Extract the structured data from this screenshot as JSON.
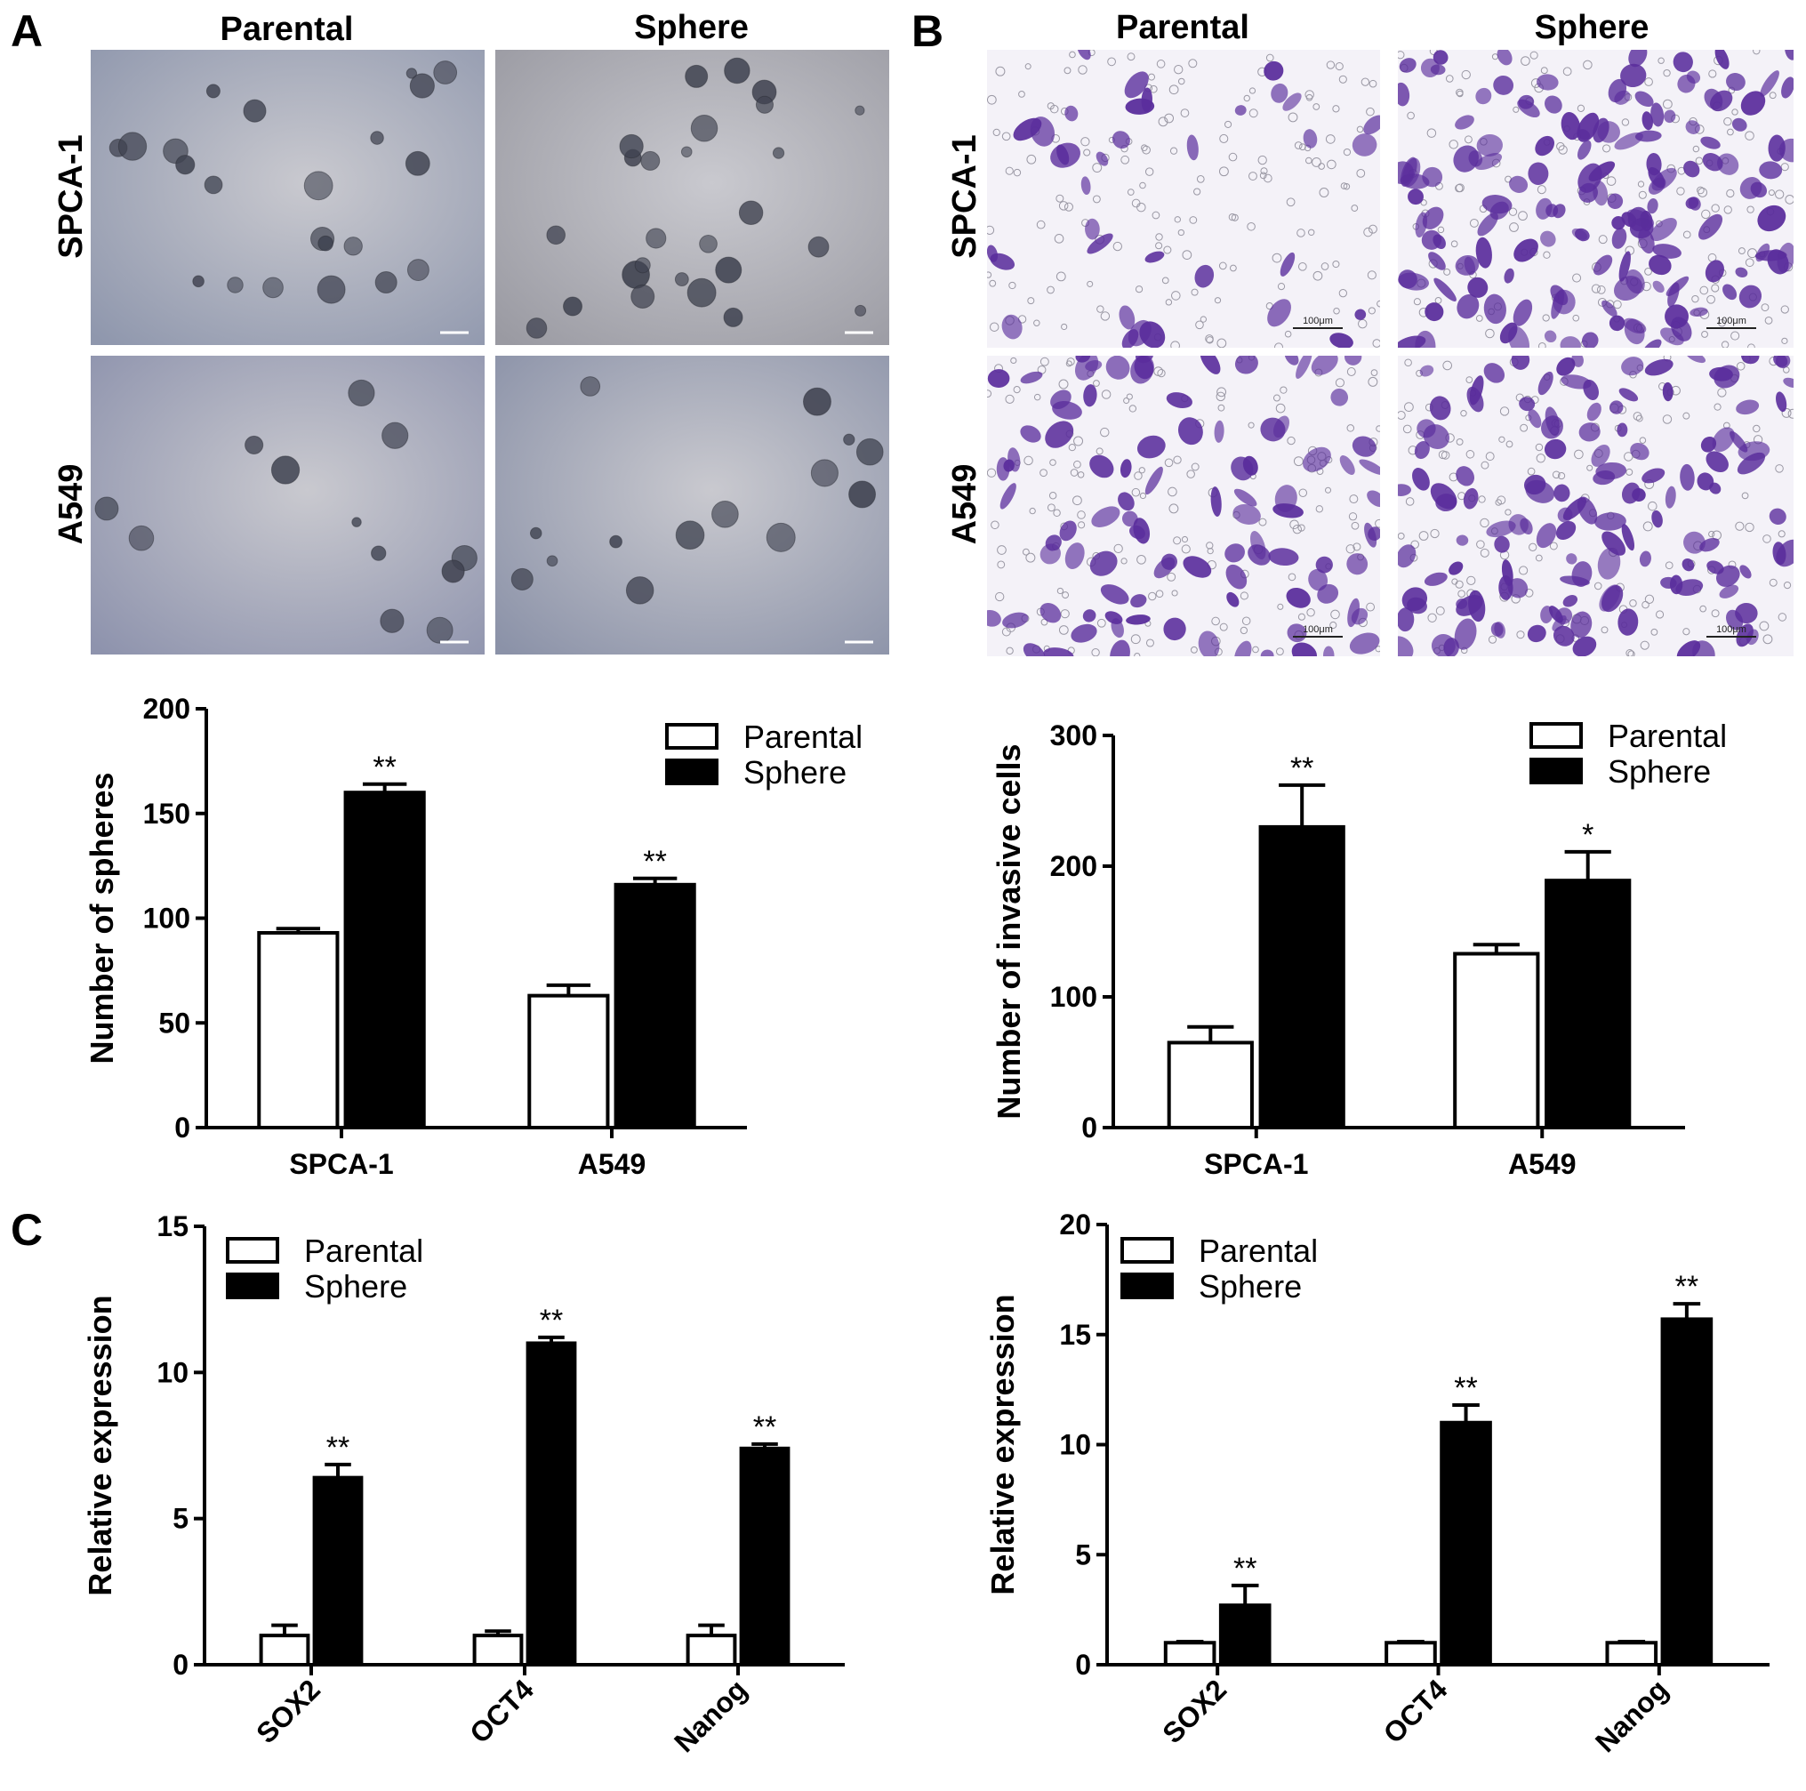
{
  "panels": {
    "a": {
      "letter": "A",
      "col_left": "Parental",
      "col_right": "Sphere",
      "row_top": "SPCA-1",
      "row_bottom": "A549"
    },
    "b": {
      "letter": "B",
      "col_left": "Parental",
      "col_right": "Sphere",
      "row_top": "SPCA-1",
      "row_bottom": "A549",
      "scale_label": "100μm"
    },
    "c": {
      "letter": "C"
    }
  },
  "colors": {
    "sphere_bg_top_left": "#8f97ad",
    "sphere_bg_top_right": "#9a9aa2",
    "sphere_bg_bottom_left": "#8e93ad",
    "sphere_bg_bottom_right": "#8b92a8",
    "sphere_blob": "#3f4250",
    "invasion_bg": "#f4f2f8",
    "invasion_cell": "#5a2d9c",
    "bar_parental": "#ffffff",
    "bar_sphere": "#000000"
  },
  "chart_data": [
    {
      "id": "spheres",
      "type": "bar",
      "categories": [
        "SPCA-1",
        "A549"
      ],
      "ylabel": "Number of spheres",
      "ylim": [
        0,
        200
      ],
      "yticks": [
        0,
        50,
        100,
        150,
        200
      ],
      "legend": "top-right",
      "series": [
        {
          "name": "Parental",
          "values": [
            93,
            63
          ],
          "errors": [
            2,
            5
          ]
        },
        {
          "name": "Sphere",
          "values": [
            160,
            116
          ],
          "errors": [
            4,
            3
          ]
        }
      ],
      "annotations": [
        {
          "category": "SPCA-1",
          "text": "**"
        },
        {
          "category": "A549",
          "text": "**"
        }
      ]
    },
    {
      "id": "invasion",
      "type": "bar",
      "categories": [
        "SPCA-1",
        "A549"
      ],
      "ylabel": "Number of invasive cells",
      "ylim": [
        0,
        300
      ],
      "yticks": [
        0,
        100,
        200,
        300
      ],
      "legend": "top-right",
      "series": [
        {
          "name": "Parental",
          "values": [
            65,
            133
          ],
          "errors": [
            12,
            7
          ]
        },
        {
          "name": "Sphere",
          "values": [
            230,
            189
          ],
          "errors": [
            32,
            22
          ]
        }
      ],
      "annotations": [
        {
          "category": "SPCA-1",
          "text": "**"
        },
        {
          "category": "A549",
          "text": "*"
        }
      ]
    },
    {
      "id": "expr-spca1",
      "type": "bar",
      "categories": [
        "SOX2",
        "OCT4",
        "Nanog"
      ],
      "ylabel": "Relative expression",
      "ylim": [
        0,
        15
      ],
      "yticks": [
        0,
        5,
        10,
        15
      ],
      "legend": "top-left",
      "series": [
        {
          "name": "Parental",
          "values": [
            1.0,
            1.0,
            1.0
          ],
          "errors": [
            0.35,
            0.15,
            0.35
          ]
        },
        {
          "name": "Sphere",
          "values": [
            6.4,
            11.0,
            7.4
          ],
          "errors": [
            0.45,
            0.2,
            0.15
          ]
        }
      ],
      "annotations": [
        {
          "category": "SOX2",
          "text": "**"
        },
        {
          "category": "OCT4",
          "text": "**"
        },
        {
          "category": "Nanog",
          "text": "**"
        }
      ]
    },
    {
      "id": "expr-a549",
      "type": "bar",
      "categories": [
        "SOX2",
        "OCT4",
        "Nanog"
      ],
      "ylabel": "Relative expression",
      "ylim": [
        0,
        20
      ],
      "yticks": [
        0,
        5,
        10,
        15,
        20
      ],
      "legend": "top-left",
      "series": [
        {
          "name": "Parental",
          "values": [
            1.0,
            1.0,
            1.0
          ],
          "errors": [
            0.05,
            0.05,
            0.05
          ]
        },
        {
          "name": "Sphere",
          "values": [
            2.7,
            11.0,
            15.7
          ],
          "errors": [
            0.9,
            0.8,
            0.7
          ]
        }
      ],
      "annotations": [
        {
          "category": "SOX2",
          "text": "**"
        },
        {
          "category": "OCT4",
          "text": "**"
        },
        {
          "category": "Nanog",
          "text": "**"
        }
      ]
    }
  ]
}
